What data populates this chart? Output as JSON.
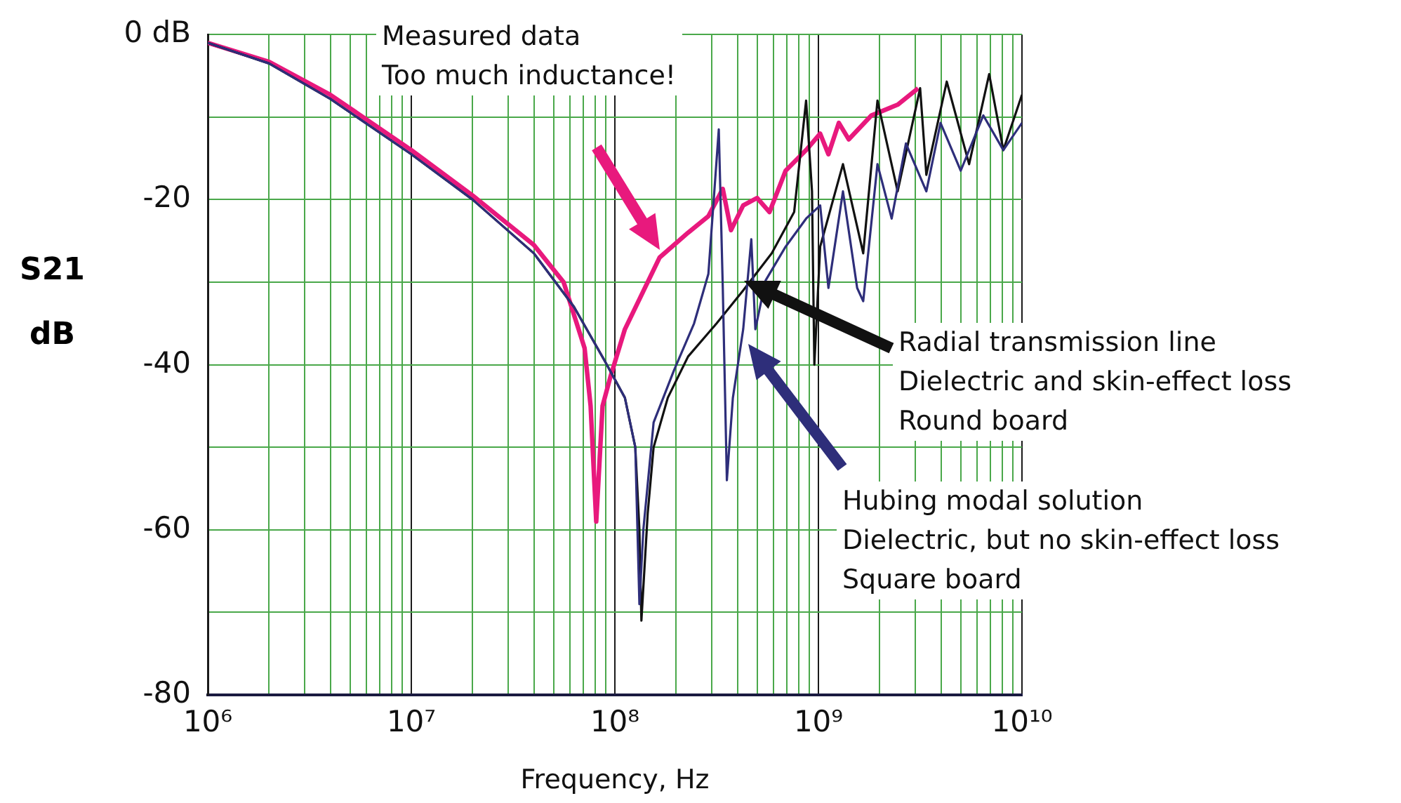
{
  "chart_data": {
    "type": "line",
    "xlabel": "Frequency, Hz",
    "ylabel": "S21 dB",
    "log": "x",
    "xlim": [
      1000000.0,
      10000000000.0
    ],
    "xticks": [
      {
        "value": 1000000.0,
        "label": "10⁶"
      },
      {
        "value": 2000000.0,
        "label": null
      },
      {
        "value": 3000000.0,
        "label": null
      },
      {
        "value": 4000000.0,
        "label": null
      },
      {
        "value": 5000000.0,
        "label": null
      },
      {
        "value": 6000000.0,
        "label": null
      },
      {
        "value": 7000000.0,
        "label": null
      },
      {
        "value": 8000000.0,
        "label": null
      },
      {
        "value": 9000000.0,
        "label": null
      },
      {
        "value": 10000000.0,
        "label": "10⁷"
      },
      {
        "value": 20000000.0,
        "label": null
      },
      {
        "value": 30000000.0,
        "label": null
      },
      {
        "value": 40000000.0,
        "label": null
      },
      {
        "value": 50000000.0,
        "label": null
      },
      {
        "value": 60000000.0,
        "label": null
      },
      {
        "value": 70000000.0,
        "label": null
      },
      {
        "value": 80000000.0,
        "label": null
      },
      {
        "value": 90000000.0,
        "label": null
      },
      {
        "value": 100000000.0,
        "label": "10⁸"
      },
      {
        "value": 200000000.0,
        "label": null
      },
      {
        "value": 300000000.0,
        "label": null
      },
      {
        "value": 400000000.0,
        "label": null
      },
      {
        "value": 500000000.0,
        "label": null
      },
      {
        "value": 600000000.0,
        "label": null
      },
      {
        "value": 700000000.0,
        "label": null
      },
      {
        "value": 800000000.0,
        "label": null
      },
      {
        "value": 900000000.0,
        "label": null
      },
      {
        "value": 1000000000.0,
        "label": "10⁹"
      },
      {
        "value": 2000000000.0,
        "label": null
      },
      {
        "value": 3000000000.0,
        "label": null
      },
      {
        "value": 4000000000.0,
        "label": null
      },
      {
        "value": 5000000000.0,
        "label": null
      },
      {
        "value": 6000000000.0,
        "label": null
      },
      {
        "value": 7000000000.0,
        "label": null
      },
      {
        "value": 8000000000.0,
        "label": null
      },
      {
        "value": 9000000000.0,
        "label": null
      },
      {
        "value": 10000000000.0,
        "label": "10¹⁰"
      }
    ],
    "ylim": [
      -80,
      0
    ],
    "yticks": [
      {
        "value": -80,
        "label": "-80"
      },
      {
        "value": -70,
        "label": null
      },
      {
        "value": -60,
        "label": "-60"
      },
      {
        "value": -50,
        "label": null
      },
      {
        "value": -40,
        "label": "-40"
      },
      {
        "value": -30,
        "label": null
      },
      {
        "value": -20,
        "label": "-20"
      },
      {
        "value": -10,
        "label": null
      },
      {
        "value": 0,
        "label": "0 dB"
      }
    ],
    "grid": true,
    "series": [
      {
        "color": "#e8197d",
        "x": [
          1000000.0,
          2000000.0,
          4000000.0,
          10000000.0,
          20000000.0,
          40000000.0,
          56000000.0,
          71000000.0,
          76000000.0,
          81000000.0,
          87000000.0,
          95000000.0,
          112000000.0,
          166000000.0,
          229000000.0,
          288000000.0,
          339000000.0,
          372000000.0,
          427000000.0,
          500000000.0,
          575000000.0,
          690000000.0,
          870000000.0,
          1020000000.0,
          1120000000.0,
          1260000000.0,
          1410000000.0,
          1820000000.0,
          2450000000.0,
          3090000000.0
        ],
        "values": [
          -1,
          -3.3,
          -7.3,
          -14,
          -19.5,
          -25.5,
          -30,
          -38,
          -45,
          -59,
          -45,
          -41.5,
          -35.7,
          -27,
          -24,
          -22,
          -18.7,
          -23.7,
          -20.7,
          -19.8,
          -21.5,
          -16.5,
          -14,
          -12,
          -14.5,
          -10.7,
          -12.7,
          -9.8,
          -8.5,
          -6.5
        ]
      },
      {
        "color": "#111111",
        "x": [
          1000000.0,
          2000000.0,
          4000000.0,
          10000000.0,
          20000000.0,
          40000000.0,
          63000000.0,
          89000000.0,
          112000000.0,
          126000000.0,
          132000000.0,
          135000000.0,
          145000000.0,
          155000000.0,
          182000000.0,
          229000000.0,
          316000000.0,
          427000000.0,
          590000000.0,
          760000000.0,
          870000000.0,
          930000000.0,
          955000000.0,
          1020000000.0,
          1320000000.0,
          1660000000.0,
          1950000000.0,
          2450000000.0,
          3160000000.0,
          3390000000.0,
          4270000000.0,
          5500000000.0,
          6900000000.0,
          8100000000.0,
          10000000000.0
        ],
        "values": [
          -1,
          -3.5,
          -7.8,
          -14.5,
          -20,
          -26.5,
          -33,
          -39.5,
          -44,
          -50,
          -60,
          -71,
          -58,
          -50,
          -44,
          -39,
          -35,
          -31,
          -26.5,
          -21.5,
          -8,
          -19,
          -40,
          -25.7,
          -15.7,
          -26.5,
          -8,
          -19,
          -6.5,
          -17,
          -5.7,
          -15.7,
          -4.8,
          -14,
          -7.3
        ]
      },
      {
        "color": "#2e2e7a",
        "x": [
          1000000.0,
          2000000.0,
          4000000.0,
          10000000.0,
          20000000.0,
          40000000.0,
          63000000.0,
          89000000.0,
          112000000.0,
          126000000.0,
          132000000.0,
          138000000.0,
          155000000.0,
          195000000.0,
          245000000.0,
          288000000.0,
          324000000.0,
          339000000.0,
          355000000.0,
          380000000.0,
          427000000.0,
          468000000.0,
          490000000.0,
          550000000.0,
          690000000.0,
          870000000.0,
          1020000000.0,
          1120000000.0,
          1320000000.0,
          1550000000.0,
          1660000000.0,
          1950000000.0,
          2290000000.0,
          2690000000.0,
          3390000000.0,
          3980000000.0,
          5000000000.0,
          6460000000.0,
          8100000000.0,
          10000000000.0
        ],
        "values": [
          -1,
          -3.5,
          -7.8,
          -14.5,
          -20,
          -26.5,
          -33,
          -39.5,
          -44,
          -50,
          -69,
          -60,
          -47,
          -40.7,
          -35,
          -29,
          -11.5,
          -30.7,
          -54,
          -44,
          -35.7,
          -24.8,
          -35.7,
          -29.8,
          -25.7,
          -22.3,
          -20.7,
          -30.7,
          -19,
          -30.7,
          -32.3,
          -15.7,
          -22.3,
          -13.2,
          -19,
          -10.7,
          -16.5,
          -9.8,
          -14,
          -10.7
        ]
      }
    ],
    "annotations": [
      "Measured data\nToo much inductance!",
      "Radial transmission line\nDielectric and skin-effect loss\nRound board",
      "Hubing modal solution\nDielectric, but no skin-effect loss\nSquare board"
    ]
  }
}
